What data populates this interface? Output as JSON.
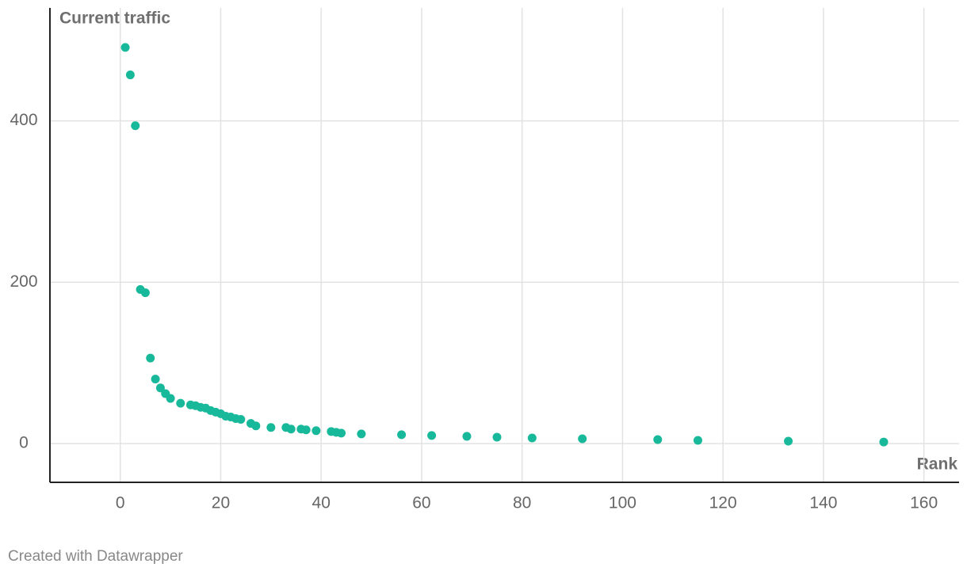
{
  "chart_data": {
    "type": "scatter",
    "y_label": "Current traffic",
    "x_label": "Rank",
    "footer": "Created with Datawrapper",
    "color": "#18b99a",
    "grid": true,
    "x": [
      1,
      2,
      3,
      4,
      5,
      6,
      7,
      8,
      9,
      10,
      12,
      14,
      15,
      16,
      17,
      18,
      19,
      20,
      21,
      22,
      23,
      24,
      26,
      27,
      30,
      33,
      34,
      36,
      37,
      39,
      42,
      43,
      44,
      48,
      56,
      62,
      69,
      75,
      82,
      92,
      107,
      115,
      133,
      152
    ],
    "values": [
      491,
      457,
      394,
      191,
      187,
      106,
      80,
      69,
      62,
      56,
      50,
      48,
      47,
      45,
      44,
      41,
      39,
      37,
      34,
      33,
      31,
      30,
      25,
      22,
      20,
      20,
      18,
      18,
      17,
      16,
      15,
      14,
      13,
      12,
      11,
      10,
      9,
      8,
      7,
      6,
      5,
      4,
      3,
      2
    ],
    "xlim": [
      -14,
      167
    ],
    "xticks": [
      0,
      20,
      40,
      60,
      80,
      100,
      120,
      140,
      160
    ],
    "ylim": [
      -48,
      540
    ],
    "yticks": [
      0,
      200,
      400
    ]
  }
}
